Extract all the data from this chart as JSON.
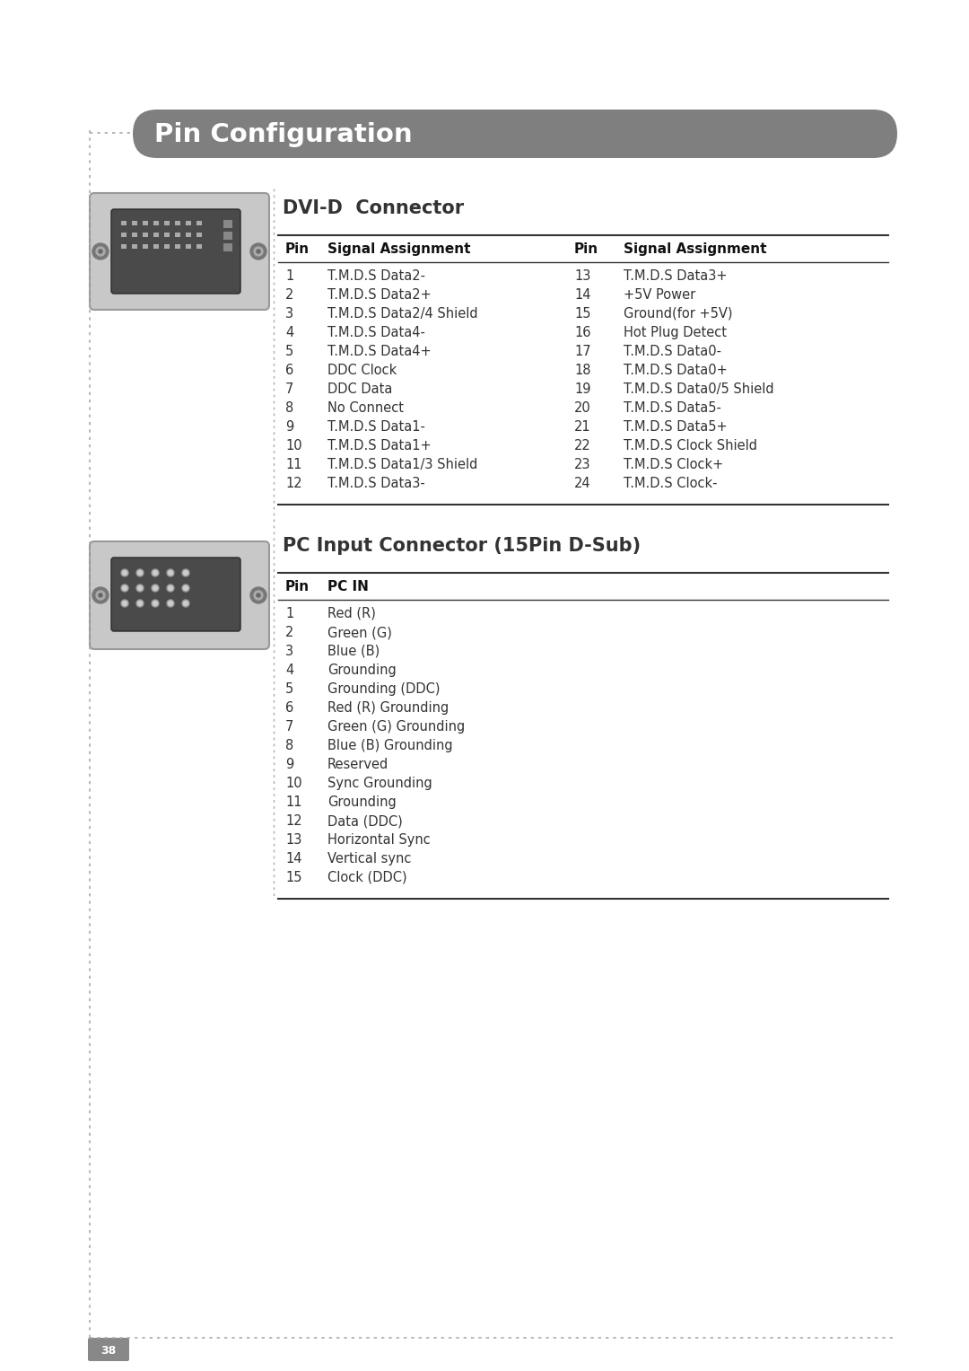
{
  "title": "Pin Configuration",
  "title_bg_color": "#7f7f7f",
  "title_text_color": "#ffffff",
  "page_bg_color": "#ffffff",
  "page_number": "38",
  "dvi_section_title": "DVI-D  Connector",
  "dvi_table_header_left": [
    "Pin",
    "Signal Assignment"
  ],
  "dvi_table_header_right": [
    "Pin",
    "Signal Assignment"
  ],
  "dvi_left": [
    [
      "1",
      "T.M.D.S Data2-"
    ],
    [
      "2",
      "T.M.D.S Data2+"
    ],
    [
      "3",
      "T.M.D.S Data2/4 Shield"
    ],
    [
      "4",
      "T.M.D.S Data4-"
    ],
    [
      "5",
      "T.M.D.S Data4+"
    ],
    [
      "6",
      "DDC Clock"
    ],
    [
      "7",
      "DDC Data"
    ],
    [
      "8",
      "No Connect"
    ],
    [
      "9",
      "T.M.D.S Data1-"
    ],
    [
      "10",
      "T.M.D.S Data1+"
    ],
    [
      "11",
      "T.M.D.S Data1/3 Shield"
    ],
    [
      "12",
      "T.M.D.S Data3-"
    ]
  ],
  "dvi_right": [
    [
      "13",
      "T.M.D.S Data3+"
    ],
    [
      "14",
      "+5V Power"
    ],
    [
      "15",
      "Ground(for +5V)"
    ],
    [
      "16",
      "Hot Plug Detect"
    ],
    [
      "17",
      "T.M.D.S Data0-"
    ],
    [
      "18",
      "T.M.D.S Data0+"
    ],
    [
      "19",
      "T.M.D.S Data0/5 Shield"
    ],
    [
      "20",
      "T.M.D.S Data5-"
    ],
    [
      "21",
      "T.M.D.S Data5+"
    ],
    [
      "22",
      "T.M.D.S Clock Shield"
    ],
    [
      "23",
      "T.M.D.S Clock+"
    ],
    [
      "24",
      "T.M.D.S Clock-"
    ]
  ],
  "pc_section_title": "PC Input Connector (15Pin D-Sub)",
  "pc_table_header": [
    "Pin",
    "PC IN"
  ],
  "pc_data": [
    [
      "1",
      "Red (R)"
    ],
    [
      "2",
      "Green (G)"
    ],
    [
      "3",
      "Blue (B)"
    ],
    [
      "4",
      "Grounding"
    ],
    [
      "5",
      "Grounding (DDC)"
    ],
    [
      "6",
      "Red (R) Grounding"
    ],
    [
      "7",
      "Green (G) Grounding"
    ],
    [
      "8",
      "Blue (B) Grounding"
    ],
    [
      "9",
      "Reserved"
    ],
    [
      "10",
      "Sync Grounding"
    ],
    [
      "11",
      "Grounding"
    ],
    [
      "12",
      "Data (DDC)"
    ],
    [
      "13",
      "Horizontal Sync"
    ],
    [
      "14",
      "Vertical sync"
    ],
    [
      "15",
      "Clock (DDC)"
    ]
  ],
  "dot_color": "#aaaaaa",
  "line_color": "#333333",
  "text_color": "#333333",
  "header_text_color": "#111111"
}
